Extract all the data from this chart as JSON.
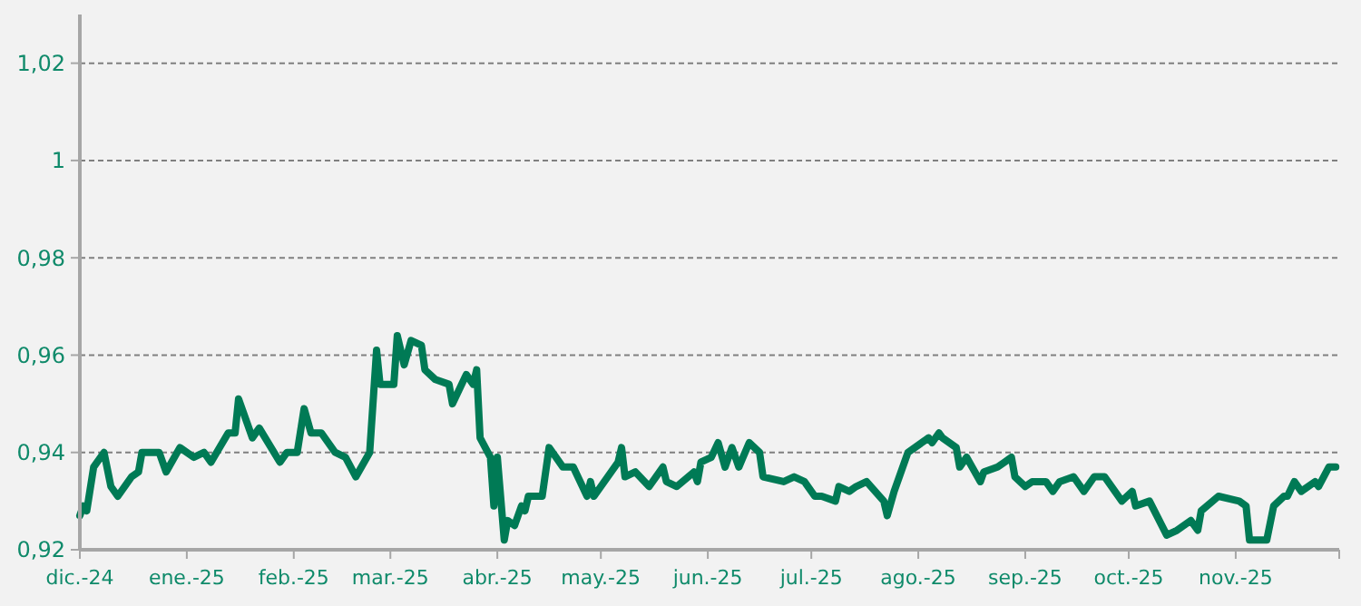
{
  "chart_data": {
    "type": "line",
    "xlim": [
      "2024-12-01",
      "2025-12-01"
    ],
    "ylim": [
      0.92,
      1.03
    ],
    "xticks": [
      {
        "value": "2024-12-01",
        "label": "dic.-24"
      },
      {
        "value": "2025-01-01",
        "label": "ene.-25"
      },
      {
        "value": "2025-02-01",
        "label": "feb.-25"
      },
      {
        "value": "2025-03-01",
        "label": "mar.-25"
      },
      {
        "value": "2025-04-01",
        "label": "abr.-25"
      },
      {
        "value": "2025-05-01",
        "label": "may.-25"
      },
      {
        "value": "2025-06-01",
        "label": "jun.-25"
      },
      {
        "value": "2025-07-01",
        "label": "jul.-25"
      },
      {
        "value": "2025-08-01",
        "label": "ago.-25"
      },
      {
        "value": "2025-09-01",
        "label": "sep.-25"
      },
      {
        "value": "2025-10-01",
        "label": "oct.-25"
      },
      {
        "value": "2025-11-01",
        "label": "nov.-25"
      },
      {
        "value": "2025-12-01",
        "label": null
      }
    ],
    "yticks": [
      {
        "value": 0.92,
        "label": "0,92"
      },
      {
        "value": 0.94,
        "label": "0,94"
      },
      {
        "value": 0.96,
        "label": "0,96"
      },
      {
        "value": 0.98,
        "label": "0,98"
      },
      {
        "value": 1,
        "label": "1"
      },
      {
        "value": 1.02,
        "label": "1,02"
      }
    ],
    "grid": "y",
    "marker": "none",
    "line_style": "solid",
    "x": [
      "2024-12-01",
      "2024-12-02",
      "2024-12-03",
      "2024-12-05",
      "2024-12-08",
      "2024-12-10",
      "2024-12-12",
      "2024-12-16",
      "2024-12-18",
      "2024-12-19",
      "2024-12-24",
      "2024-12-26",
      "2024-12-30",
      "2025-01-03",
      "2025-01-06",
      "2025-01-08",
      "2025-01-13",
      "2025-01-15",
      "2025-01-16",
      "2025-01-20",
      "2025-01-22",
      "2025-01-28",
      "2025-01-30",
      "2025-02-02",
      "2025-02-04",
      "2025-02-06",
      "2025-02-09",
      "2025-02-13",
      "2025-02-16",
      "2025-02-19",
      "2025-02-23",
      "2025-02-25",
      "2025-02-26",
      "2025-03-02",
      "2025-03-03",
      "2025-03-05",
      "2025-03-07",
      "2025-03-10",
      "2025-03-11",
      "2025-03-14",
      "2025-03-18",
      "2025-03-19",
      "2025-03-23",
      "2025-03-25",
      "2025-03-26",
      "2025-03-27",
      "2025-03-30",
      "2025-03-31",
      "2025-04-01",
      "2025-04-03",
      "2025-04-04",
      "2025-04-06",
      "2025-04-08",
      "2025-04-09",
      "2025-04-10",
      "2025-04-14",
      "2025-04-16",
      "2025-04-20",
      "2025-04-23",
      "2025-04-27",
      "2025-04-28",
      "2025-04-29",
      "2025-05-06",
      "2025-05-07",
      "2025-05-08",
      "2025-05-11",
      "2025-05-15",
      "2025-05-19",
      "2025-05-20",
      "2025-05-23",
      "2025-05-28",
      "2025-05-29",
      "2025-05-30",
      "2025-06-02",
      "2025-06-04",
      "2025-06-06",
      "2025-06-08",
      "2025-06-10",
      "2025-06-13",
      "2025-06-16",
      "2025-06-17",
      "2025-06-23",
      "2025-06-26",
      "2025-06-29",
      "2025-07-02",
      "2025-07-04",
      "2025-07-08",
      "2025-07-09",
      "2025-07-12",
      "2025-07-14",
      "2025-07-17",
      "2025-07-22",
      "2025-07-23",
      "2025-07-25",
      "2025-07-29",
      "2025-08-04",
      "2025-08-05",
      "2025-08-07",
      "2025-08-08",
      "2025-08-12",
      "2025-08-13",
      "2025-08-15",
      "2025-08-19",
      "2025-08-20",
      "2025-08-24",
      "2025-08-26",
      "2025-08-28",
      "2025-08-29",
      "2025-09-01",
      "2025-09-03",
      "2025-09-07",
      "2025-09-09",
      "2025-09-11",
      "2025-09-15",
      "2025-09-18",
      "2025-09-21",
      "2025-09-24",
      "2025-09-29",
      "2025-10-02",
      "2025-10-03",
      "2025-10-07",
      "2025-10-12",
      "2025-10-15",
      "2025-10-19",
      "2025-10-21",
      "2025-10-22",
      "2025-10-27",
      "2025-11-02",
      "2025-11-04",
      "2025-11-05",
      "2025-11-10",
      "2025-11-12",
      "2025-11-15",
      "2025-11-16",
      "2025-11-18",
      "2025-11-20",
      "2025-11-24",
      "2025-11-25",
      "2025-11-28",
      "2025-11-30"
    ],
    "series": [
      {
        "color": "#007a55",
        "values": [
          0.927,
          0.929,
          0.928,
          0.937,
          0.94,
          0.933,
          0.931,
          0.935,
          0.936,
          0.94,
          0.94,
          0.936,
          0.941,
          0.939,
          0.94,
          0.938,
          0.944,
          0.944,
          0.951,
          0.943,
          0.945,
          0.938,
          0.94,
          0.94,
          0.949,
          0.944,
          0.944,
          0.94,
          0.939,
          0.935,
          0.94,
          0.961,
          0.954,
          0.954,
          0.964,
          0.958,
          0.963,
          0.962,
          0.957,
          0.955,
          0.954,
          0.95,
          0.956,
          0.954,
          0.957,
          0.943,
          0.939,
          0.929,
          0.939,
          0.922,
          0.926,
          0.925,
          0.929,
          0.928,
          0.931,
          0.931,
          0.941,
          0.937,
          0.937,
          0.931,
          0.934,
          0.931,
          0.938,
          0.941,
          0.935,
          0.936,
          0.933,
          0.937,
          0.934,
          0.933,
          0.936,
          0.934,
          0.938,
          0.939,
          0.942,
          0.937,
          0.941,
          0.937,
          0.942,
          0.94,
          0.935,
          0.934,
          0.935,
          0.934,
          0.931,
          0.931,
          0.93,
          0.933,
          0.932,
          0.933,
          0.934,
          0.93,
          0.927,
          0.932,
          0.94,
          0.943,
          0.942,
          0.944,
          0.943,
          0.941,
          0.937,
          0.939,
          0.934,
          0.936,
          0.937,
          0.938,
          0.939,
          0.935,
          0.933,
          0.934,
          0.934,
          0.932,
          0.934,
          0.935,
          0.932,
          0.935,
          0.935,
          0.93,
          0.932,
          0.929,
          0.93,
          0.923,
          0.924,
          0.926,
          0.924,
          0.928,
          0.931,
          0.93,
          0.929,
          0.922,
          0.922,
          0.929,
          0.931,
          0.931,
          0.934,
          0.932,
          0.934,
          0.933,
          0.937,
          0.937
        ]
      }
    ]
  }
}
